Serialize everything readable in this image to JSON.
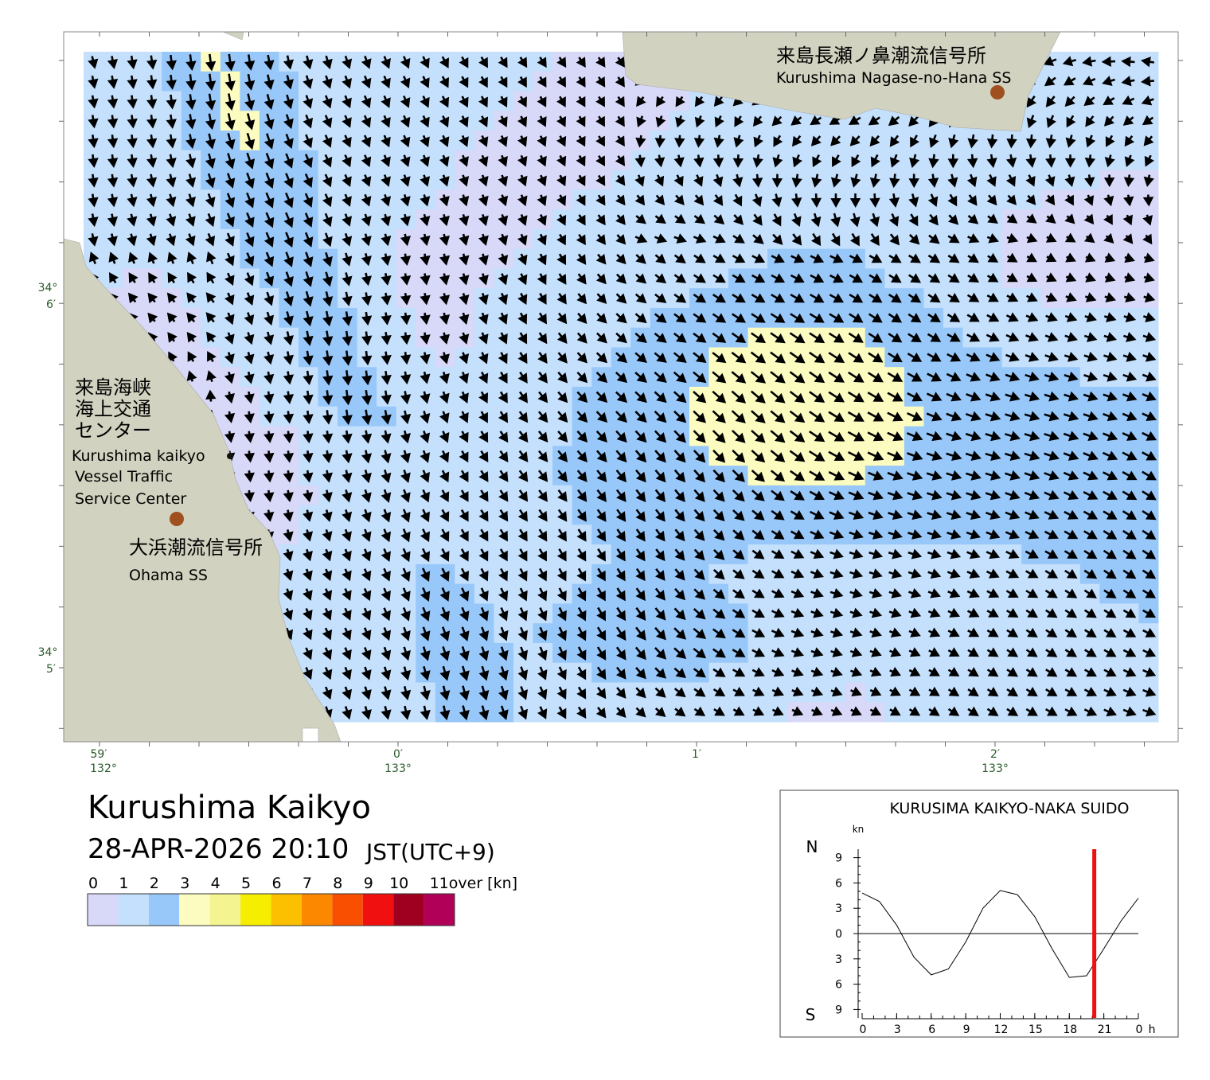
{
  "map": {
    "title": "Kurushima Kaikyo",
    "datetime": "28-APR-2026 20:10",
    "timezone": "JST(UTC+9)",
    "stations": [
      {
        "name_ja": "来島長瀬ノ鼻潮流信号所",
        "name_en": "Kurushima Nagase-no-Hana SS"
      },
      {
        "name_ja": "大浜潮流信号所",
        "name_en": "Ohama SS"
      }
    ],
    "center": {
      "name_ja": [
        "来島海峡",
        "海上交通",
        "センター"
      ],
      "name_en": [
        "Kurushima kaikyo",
        "Vessel Traffic",
        "Service Center"
      ]
    },
    "lat_labels": [
      {
        "deg": "34°",
        "min": "6′"
      },
      {
        "deg": "34°",
        "min": "5′"
      }
    ],
    "lon_labels": [
      {
        "min": "59′",
        "deg": "132°"
      },
      {
        "min": "0′",
        "deg": "133°"
      },
      {
        "min": "1′"
      },
      {
        "min": "2′",
        "deg": "133°"
      }
    ]
  },
  "legend": {
    "ticks": [
      0,
      1,
      2,
      3,
      4,
      5,
      6,
      7,
      8,
      9,
      10,
      {
        "value": 11,
        "label": "11over [kn]"
      }
    ],
    "colors": [
      "#d8d8f8",
      "#c4e0fc",
      "#98c8fa",
      "#fcfcc0",
      "#f4f490",
      "#f6ee00",
      "#fcc000",
      "#fc8800",
      "#f85000",
      "#f01010",
      "#a00020",
      "#b00058"
    ]
  },
  "chart_data": {
    "type": "line",
    "title": "KURUSIMA KAIKYO-NAKA SUIDO",
    "y_unit": "kn",
    "north_label": "N",
    "south_label": "S",
    "x_unit": "h",
    "x": [
      0,
      1.5,
      3,
      4.5,
      6,
      7.5,
      9,
      10.5,
      12,
      13.5,
      15,
      16.5,
      18,
      19.5,
      21,
      22.5,
      24
    ],
    "values": [
      4.8,
      3.8,
      1.0,
      -2.8,
      -4.9,
      -4.2,
      -1.0,
      3.0,
      5.1,
      4.6,
      2.0,
      -1.8,
      -5.2,
      -5.0,
      -1.8,
      1.5,
      4.2
    ],
    "color": "#000000",
    "xlim": [
      0,
      24
    ],
    "ylim": [
      -10,
      10
    ],
    "xticks": [
      0,
      3,
      6,
      9,
      12,
      15,
      18,
      21,
      {
        "value": 24,
        "label": "0"
      }
    ],
    "yticks": [
      9,
      6,
      3,
      0,
      {
        "value": -3,
        "label": "3"
      },
      {
        "value": -6,
        "label": "6"
      },
      {
        "value": -9,
        "label": "9"
      }
    ],
    "marker_x": 20.17,
    "marker_color": "#ee1111"
  }
}
